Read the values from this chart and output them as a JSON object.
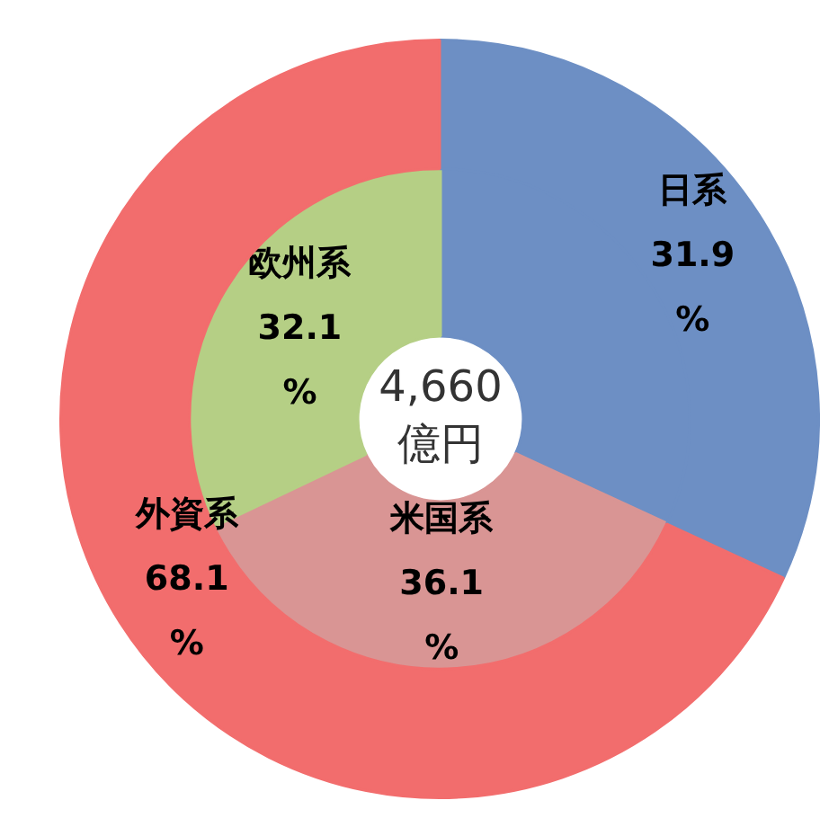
{
  "chart_data": [
    {
      "type": "donut",
      "categories": [
        "日系",
        "外資系"
      ],
      "values": [
        31.9,
        68.1
      ],
      "colors": [
        "#6d8fc4",
        "#f26d6d"
      ],
      "value_labels": [
        "31.9%",
        "68.1%"
      ]
    },
    {
      "type": "donut",
      "categories": [
        null,
        "米国系",
        "欧州系"
      ],
      "values": [
        31.9,
        36.1,
        32.1
      ],
      "colors": [
        "#6d8fc4",
        "#d99594",
        "#b5cf85"
      ],
      "value_labels": [
        null,
        "36.1%",
        "32.1%"
      ],
      "annotations": [
        "4,660 億円"
      ]
    }
  ]
}
